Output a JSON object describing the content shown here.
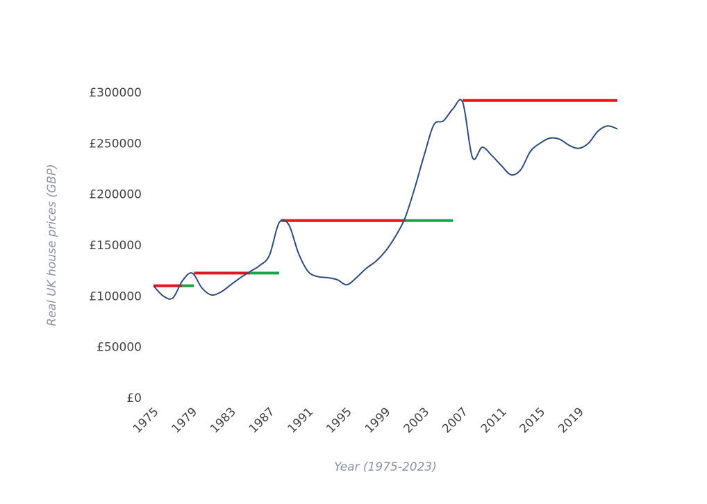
{
  "chart_data": {
    "type": "line",
    "title": "",
    "xlabel": "Year (1975-2023)",
    "ylabel": "Real UK house prices (GBP)",
    "xlim": [
      1975,
      2023
    ],
    "ylim": [
      0,
      300000
    ],
    "grid": false,
    "legend": "none",
    "x_ticks": [
      1975,
      1979,
      1983,
      1987,
      1991,
      1995,
      1999,
      2003,
      2007,
      2011,
      2015,
      2019
    ],
    "y_ticks": [
      0,
      50000,
      100000,
      150000,
      200000,
      250000,
      300000
    ],
    "y_tick_labels": [
      "£0",
      "£50000",
      "£100000",
      "£150000",
      "£200000",
      "£250000",
      "£300000"
    ],
    "series": [
      {
        "color": "#2f4b7c",
        "points": [
          [
            1975,
            110000
          ],
          [
            1976,
            100000
          ],
          [
            1977,
            98000
          ],
          [
            1978,
            115000
          ],
          [
            1979,
            122500
          ],
          [
            1980,
            108000
          ],
          [
            1981,
            101000
          ],
          [
            1982,
            104000
          ],
          [
            1983,
            111000
          ],
          [
            1984,
            118000
          ],
          [
            1985,
            124000
          ],
          [
            1986,
            130000
          ],
          [
            1987,
            140000
          ],
          [
            1988,
            172000
          ],
          [
            1989,
            170000
          ],
          [
            1990,
            142000
          ],
          [
            1991,
            124000
          ],
          [
            1992,
            119000
          ],
          [
            1993,
            118000
          ],
          [
            1994,
            116000
          ],
          [
            1995,
            111000
          ],
          [
            1996,
            118000
          ],
          [
            1997,
            127000
          ],
          [
            1998,
            134000
          ],
          [
            1999,
            144000
          ],
          [
            2000,
            158000
          ],
          [
            2001,
            176000
          ],
          [
            2002,
            205000
          ],
          [
            2003,
            238000
          ],
          [
            2004,
            268000
          ],
          [
            2005,
            272000
          ],
          [
            2006,
            284000
          ],
          [
            2007,
            290000
          ],
          [
            2008,
            236000
          ],
          [
            2009,
            246000
          ],
          [
            2010,
            238000
          ],
          [
            2011,
            228000
          ],
          [
            2012,
            219000
          ],
          [
            2013,
            224000
          ],
          [
            2014,
            242000
          ],
          [
            2015,
            250000
          ],
          [
            2016,
            255000
          ],
          [
            2017,
            254000
          ],
          [
            2018,
            248000
          ],
          [
            2019,
            245000
          ],
          [
            2020,
            250000
          ],
          [
            2021,
            262000
          ],
          [
            2022,
            267000
          ],
          [
            2023,
            264000
          ]
        ]
      }
    ],
    "peak_lines": [
      {
        "color": "#e5131b",
        "value": 110000,
        "x_start": 1975,
        "x_end": 1978
      },
      {
        "color": "#19a34a",
        "value": 110000,
        "x_start": 1978,
        "x_end": 1979.2
      },
      {
        "color": "#e5131b",
        "value": 122500,
        "x_start": 1979.2,
        "x_end": 1985
      },
      {
        "color": "#19a34a",
        "value": 122500,
        "x_start": 1985,
        "x_end": 1988
      },
      {
        "color": "#e5131b",
        "value": 174000,
        "x_start": 1988.2,
        "x_end": 2001.1
      },
      {
        "color": "#19a34a",
        "value": 174000,
        "x_start": 2001.1,
        "x_end": 2006
      },
      {
        "color": "#e5131b",
        "value": 292000,
        "x_start": 2007,
        "x_end": 2023
      }
    ]
  }
}
